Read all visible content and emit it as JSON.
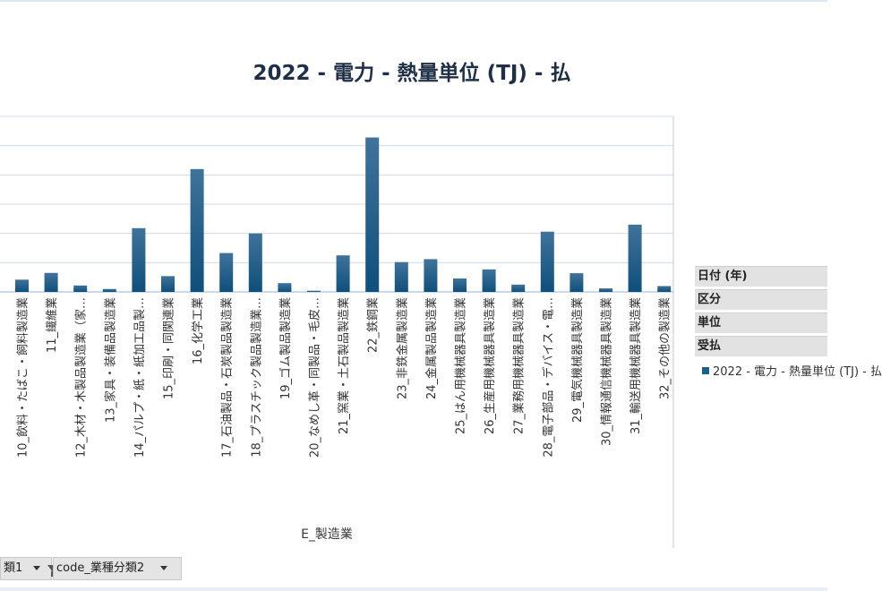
{
  "chart_data": {
    "type": "bar",
    "title": "2022 - 電力 - 熱量単位 (TJ) - 払",
    "xlabel": "E_製造業",
    "ylabel": "",
    "categories": [
      "10_飲料・たばこ・飼料製造業",
      "11_繊維業",
      "12_木材・木製品製造業（家…",
      "13_家具・装備品製造業",
      "14_パルプ・紙・紙加工品製…",
      "15_印刷・同関連業",
      "16_化学工業",
      "17_石油製品・石炭製品製造業",
      "18_プラスチック製品製造業…",
      "19_ゴム製品製造業",
      "20_なめし革・同製品・毛皮…",
      "21_窯業・土石製品製造業",
      "22_鉄鋼業",
      "23_非鉄金属製造業",
      "24_金属製品製造業",
      "25_はん用機械器具製造業",
      "26_生産用機械器具製造業",
      "27_業務用機械器具製造業",
      "28_電子部品・デバイス・電…",
      "29_電気機械器具製造業",
      "30_情報通信機械器具製造業",
      "31_輸送用機械器具製造業",
      "32_その他の製造業"
    ],
    "series": [
      {
        "name": "2022 - 電力 - 熱量単位 (TJ) - 払",
        "values": [
          4.2,
          6.5,
          2.2,
          1.0,
          21.8,
          5.4,
          42.0,
          13.3,
          20.0,
          3.0,
          0.4,
          12.5,
          52.8,
          10.2,
          11.2,
          4.6,
          7.7,
          2.5,
          20.6,
          6.4,
          1.2,
          23.0,
          2.0
        ]
      }
    ],
    "ylim": [
      0,
      60
    ],
    "grid": true,
    "legend_position": "right",
    "colors": {
      "bar_top": "#40739a",
      "bar_bottom": "#0f4f7b",
      "grid": "#cfdced",
      "axis": "#b9cde3"
    }
  },
  "legend_panel": {
    "fields": [
      "日付 (年)",
      "区分",
      "単位",
      "受払"
    ],
    "entry": "2022 - 電力 - 熱量単位 (TJ) - 払"
  },
  "filter_bar": {
    "left_label": "類1",
    "right_label": "code_業種分類2",
    "funnel_icon": "filter-funnel-icon",
    "dropdown_icon": "chevron-down-icon"
  }
}
